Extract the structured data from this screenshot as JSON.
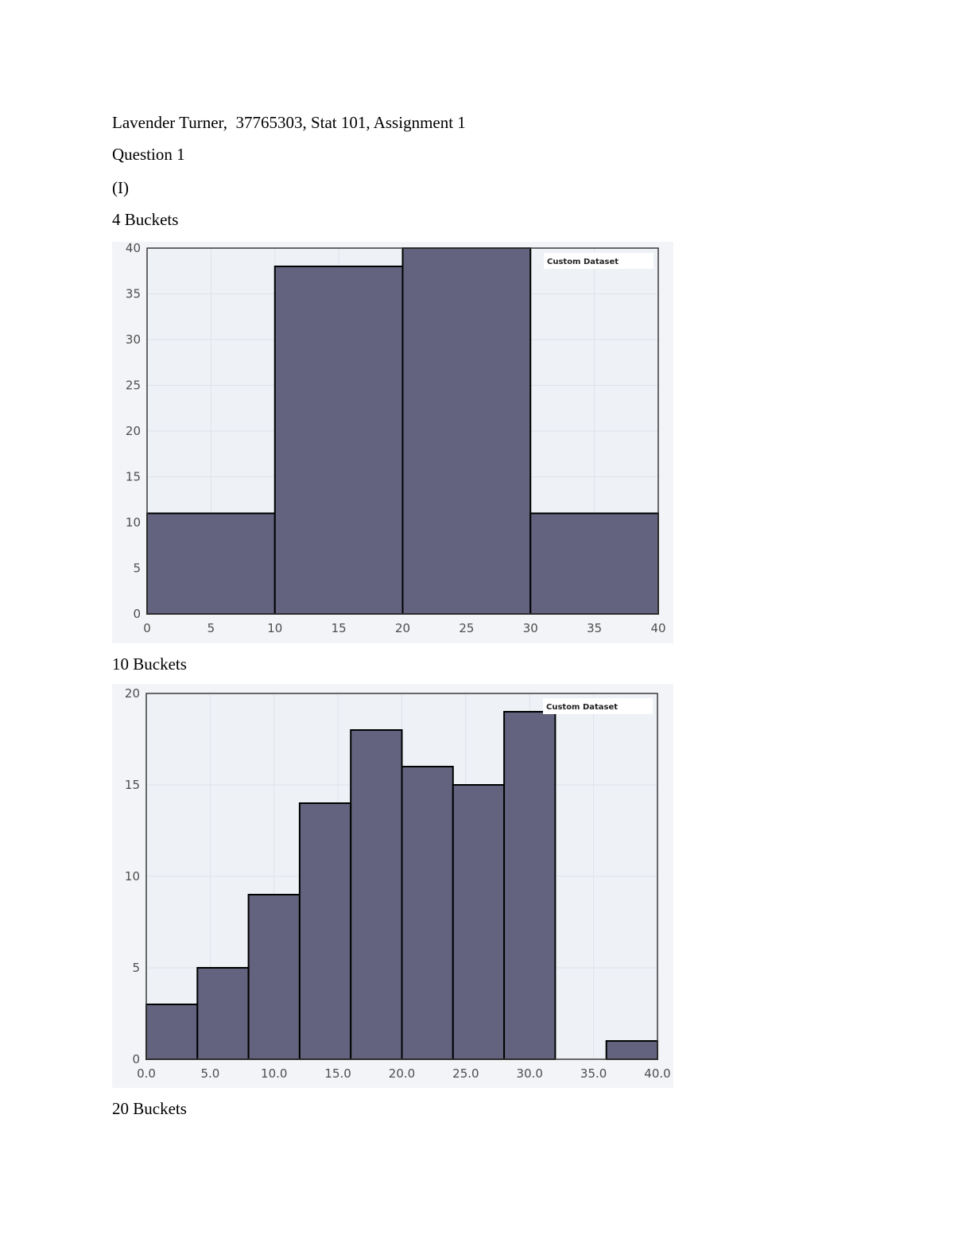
{
  "header_line": "Lavender Turner,  37765303, Stat 101, Assignment 1",
  "question": "Question 1",
  "part": "(I)",
  "sections": [
    {
      "heading": "4 Buckets"
    },
    {
      "heading": "10 Buckets"
    },
    {
      "heading": "20 Buckets"
    }
  ],
  "colors": {
    "bar": "#63637f",
    "plot_bg": "#eef2f6",
    "outer_bg": "#f2f4f7"
  },
  "chart_data": [
    {
      "type": "bar",
      "legend": "Custom Dataset",
      "legend_position": "top-right",
      "grid": true,
      "bin_edges": [
        0,
        10,
        20,
        30,
        40
      ],
      "values": [
        11,
        38,
        40,
        11
      ],
      "xlim": [
        0,
        40
      ],
      "ylim": [
        0,
        40
      ],
      "x_ticks": [
        "0",
        "5",
        "10",
        "15",
        "20",
        "25",
        "30",
        "35",
        "40"
      ],
      "y_ticks": [
        "0",
        "5",
        "10",
        "15",
        "20",
        "25",
        "30",
        "35",
        "40"
      ]
    },
    {
      "type": "bar",
      "legend": "Custom Dataset",
      "legend_position": "top-right",
      "grid": true,
      "bin_edges": [
        0,
        4,
        8,
        12,
        16,
        20,
        24,
        28,
        32,
        36,
        40
      ],
      "values": [
        3,
        5,
        9,
        14,
        18,
        16,
        15,
        19,
        0,
        1
      ],
      "xlim": [
        0,
        40
      ],
      "ylim": [
        0,
        20
      ],
      "x_ticks": [
        "0.0",
        "5.0",
        "10.0",
        "15.0",
        "20.0",
        "25.0",
        "30.0",
        "35.0",
        "40.0"
      ],
      "y_ticks": [
        "0",
        "5",
        "10",
        "15",
        "20"
      ]
    }
  ]
}
